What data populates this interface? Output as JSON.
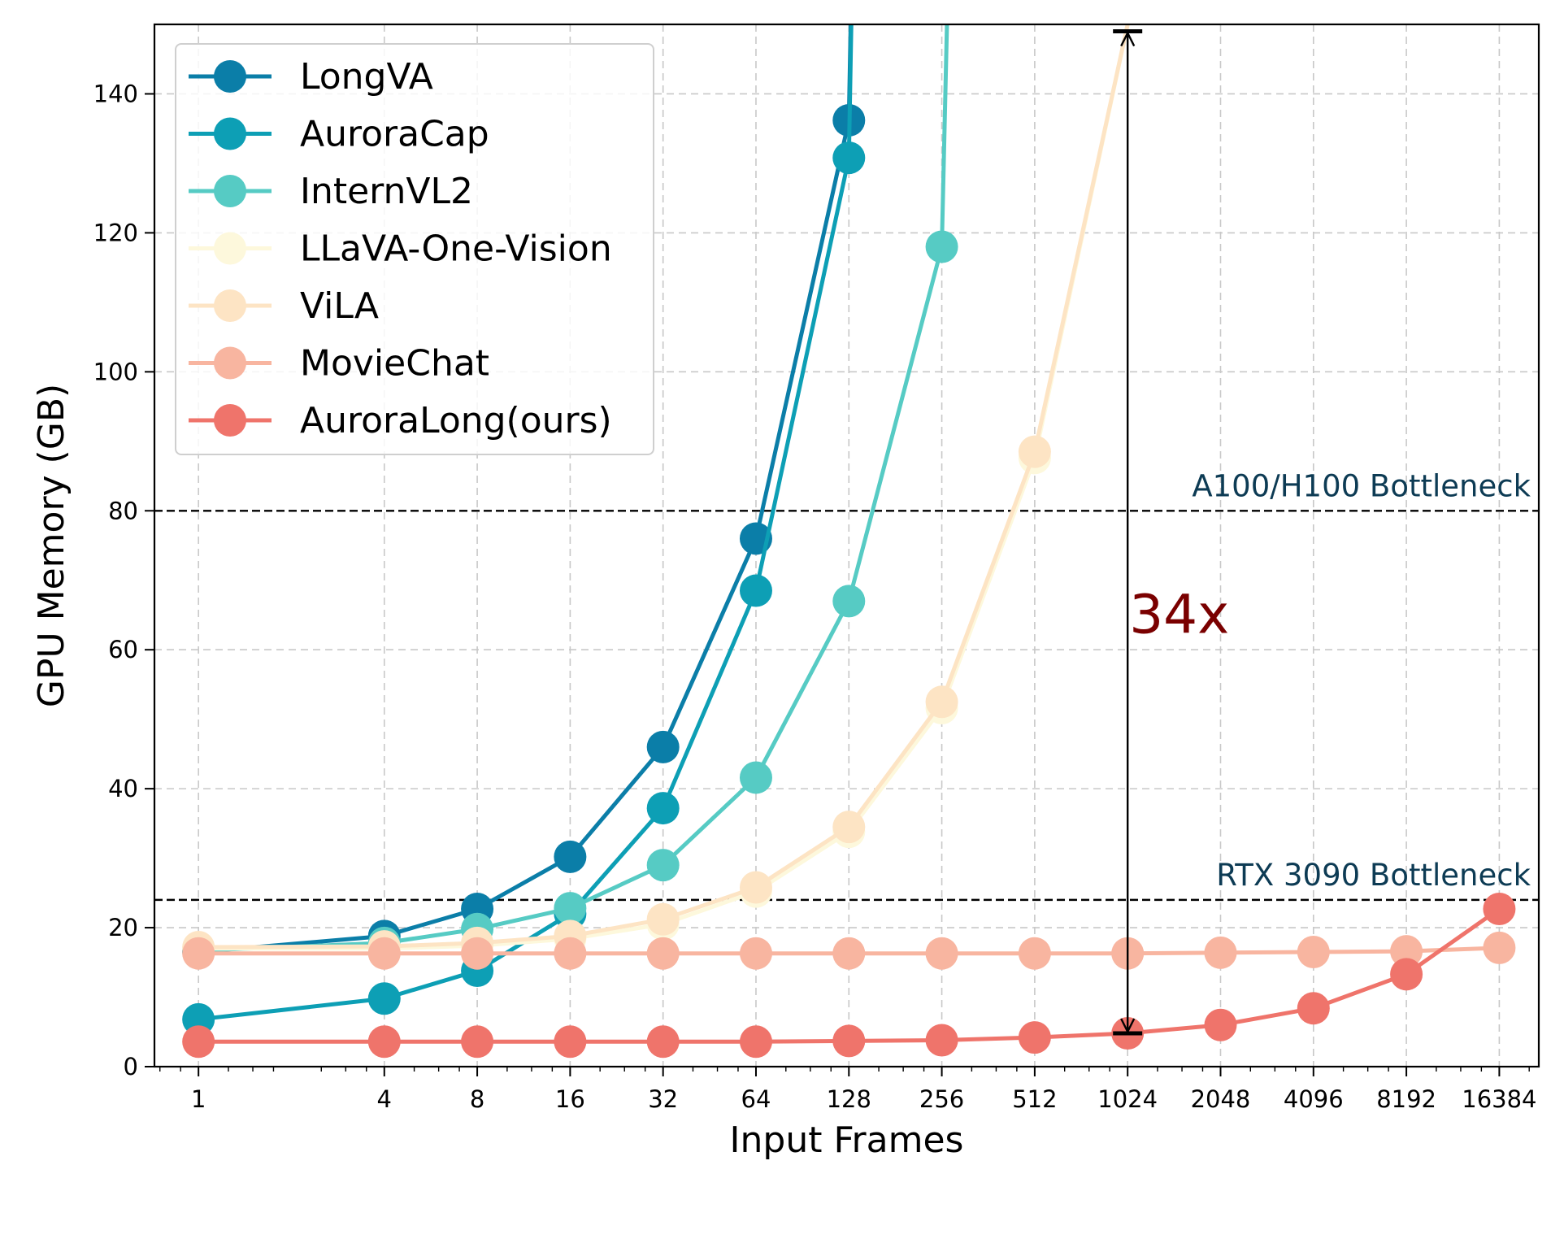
{
  "chart_data": {
    "type": "line",
    "xlabel": "Input Frames",
    "ylabel": "GPU Memory (GB)",
    "xscale": "log2",
    "xlim": [
      0.72,
      22000
    ],
    "ylim": [
      0,
      150
    ],
    "grid": true,
    "legend_position": "top-left",
    "x_ticks": [
      1,
      4,
      8,
      16,
      32,
      64,
      128,
      256,
      512,
      1024,
      2048,
      4096,
      8192,
      16384
    ],
    "x_tick_labels": [
      "1",
      "4",
      "8",
      "16",
      "32",
      "64",
      "128",
      "256",
      "512",
      "1024",
      "2048",
      "4096",
      "8192",
      "16384"
    ],
    "y_ticks": [
      0,
      20,
      40,
      60,
      80,
      100,
      120,
      140
    ],
    "y_tick_labels": [
      "0",
      "20",
      "40",
      "60",
      "80",
      "100",
      "120",
      "140"
    ],
    "series": [
      {
        "name": "LongVA",
        "color": "#0b7ea8",
        "x": [
          1,
          4,
          8,
          16,
          32,
          64,
          128,
          150
        ],
        "y": [
          16.5,
          18.8,
          22.7,
          30.2,
          46.0,
          76.0,
          136.2,
          300
        ],
        "markers": [
          true,
          true,
          true,
          true,
          true,
          true,
          true,
          false
        ]
      },
      {
        "name": "AuroraCap",
        "color": "#0d9fb5",
        "x": [
          1,
          4,
          8,
          16,
          32,
          64,
          128,
          150
        ],
        "y": [
          6.8,
          9.8,
          13.8,
          22.0,
          37.2,
          68.5,
          130.8,
          300
        ],
        "markers": [
          true,
          true,
          true,
          true,
          true,
          true,
          true,
          false
        ]
      },
      {
        "name": "InternVL2",
        "color": "#56cbc4",
        "x": [
          1,
          4,
          8,
          16,
          32,
          64,
          128,
          256,
          300
        ],
        "y": [
          16.7,
          17.8,
          19.8,
          22.8,
          29.0,
          41.6,
          67.0,
          118.0,
          250
        ],
        "markers": [
          true,
          true,
          true,
          true,
          true,
          true,
          true,
          true,
          false
        ]
      },
      {
        "name": "LLaVA-One-Vision",
        "color": "#fdf8dc",
        "x": [
          1,
          4,
          8,
          16,
          32,
          64,
          128,
          256,
          512,
          1024
        ],
        "y": [
          17.0,
          17.0,
          17.4,
          18.4,
          20.5,
          25.2,
          33.8,
          51.6,
          87.6,
          150
        ],
        "markers": [
          true,
          true,
          true,
          true,
          true,
          true,
          true,
          true,
          true,
          false
        ]
      },
      {
        "name": "ViLA",
        "color": "#fde4c4",
        "x": [
          1,
          4,
          8,
          16,
          32,
          64,
          128,
          256,
          512,
          1024
        ],
        "y": [
          17.2,
          17.3,
          17.8,
          18.8,
          21.2,
          25.8,
          34.5,
          52.5,
          88.5,
          150
        ],
        "markers": [
          true,
          true,
          true,
          true,
          true,
          true,
          true,
          true,
          true,
          false
        ]
      },
      {
        "name": "MovieChat",
        "color": "#f8b5a0",
        "x": [
          1,
          4,
          8,
          16,
          32,
          64,
          128,
          256,
          512,
          1024,
          2048,
          4096,
          8192,
          16384
        ],
        "y": [
          16.3,
          16.3,
          16.3,
          16.3,
          16.3,
          16.3,
          16.3,
          16.3,
          16.3,
          16.3,
          16.4,
          16.5,
          16.6,
          17.1
        ],
        "markers": [
          true,
          true,
          true,
          true,
          true,
          true,
          true,
          true,
          true,
          true,
          true,
          true,
          true,
          true
        ]
      },
      {
        "name": "AuroraLong(ours)",
        "color": "#ef746b",
        "x": [
          1,
          4,
          8,
          16,
          32,
          64,
          128,
          256,
          512,
          1024,
          2048,
          4096,
          8192,
          16384
        ],
        "y": [
          3.6,
          3.6,
          3.6,
          3.6,
          3.6,
          3.6,
          3.7,
          3.8,
          4.2,
          4.8,
          6.0,
          8.4,
          13.3,
          22.7
        ],
        "markers": [
          true,
          true,
          true,
          true,
          true,
          true,
          true,
          true,
          true,
          true,
          true,
          true,
          true,
          true
        ]
      }
    ],
    "reference_lines": [
      {
        "y": 80,
        "label": "A100/H100 Bottleneck",
        "color": "#0d3b54"
      },
      {
        "y": 24,
        "label": "RTX 3090 Bottleneck",
        "color": "#0d3b54"
      }
    ],
    "annotation": {
      "label": "34x",
      "x": 1024,
      "y_from": 4.8,
      "y_to": 149,
      "color": "#7a0000"
    }
  }
}
